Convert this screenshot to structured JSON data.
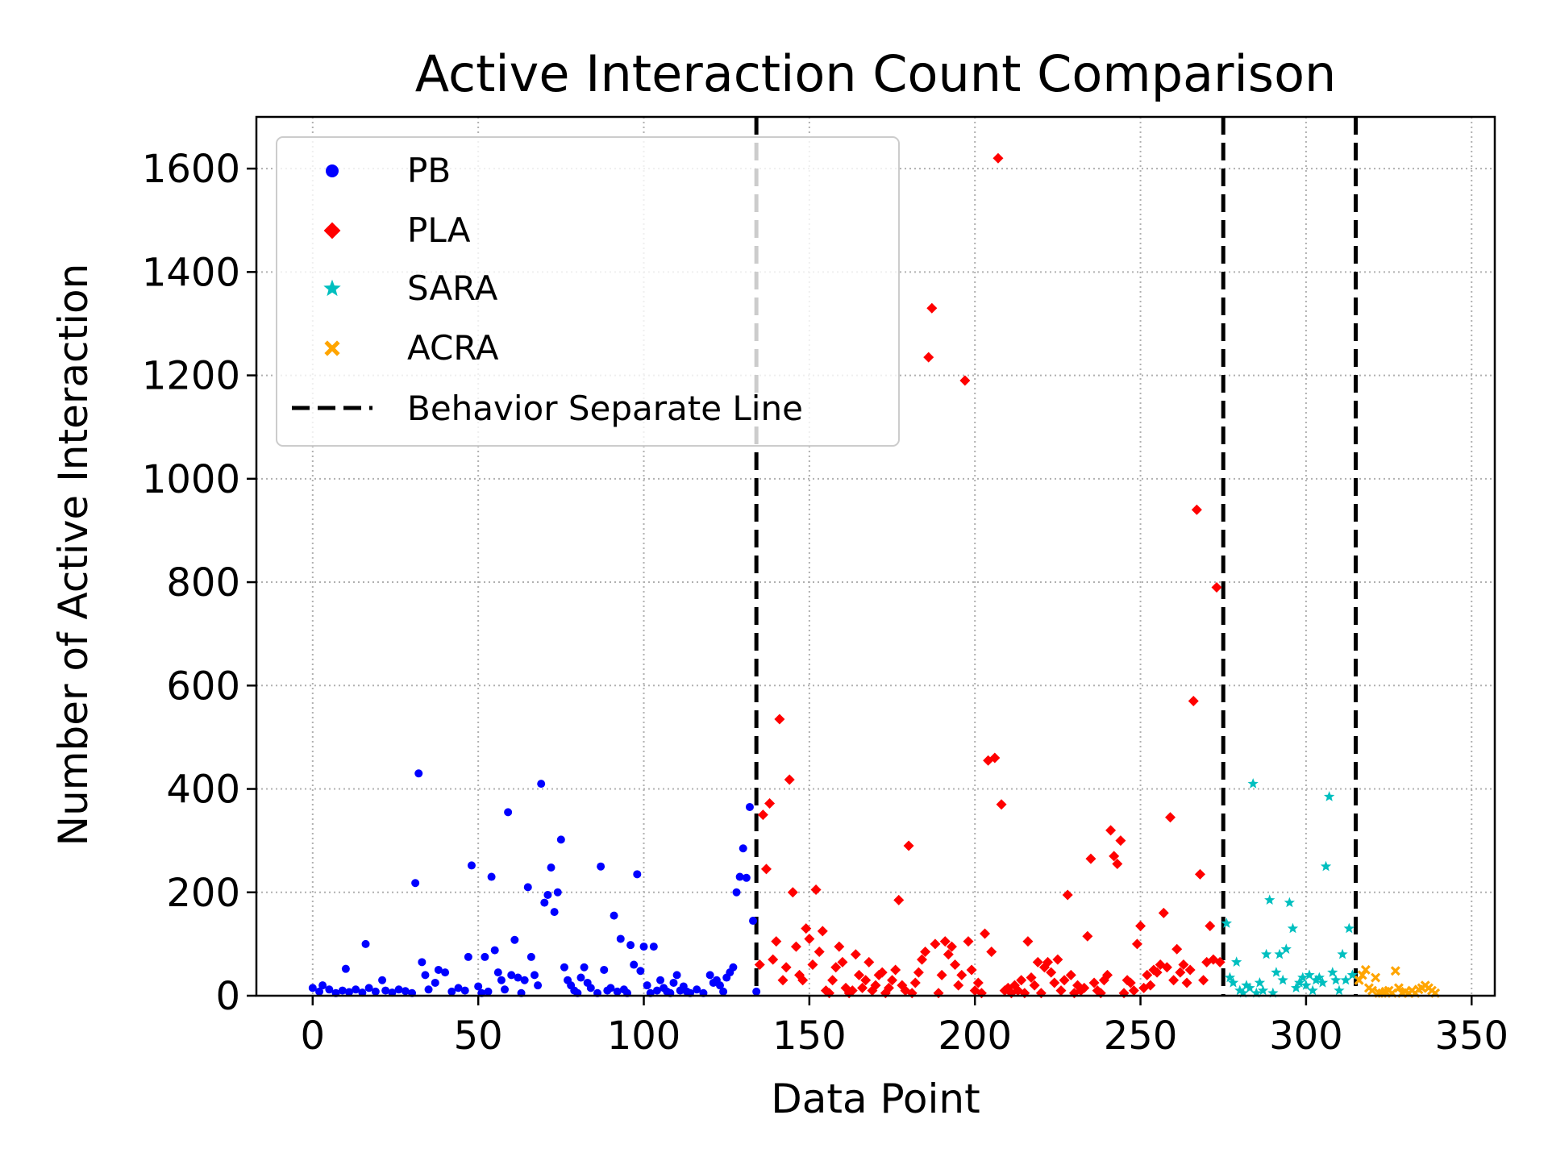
{
  "chart_data": {
    "type": "scatter",
    "title": "Active Interaction Count Comparison",
    "xlabel": "Data Point",
    "ylabel": "Number of Active Interaction",
    "xlim": [
      -17,
      357
    ],
    "ylim": [
      0,
      1700
    ],
    "xticks": [
      0,
      50,
      100,
      150,
      200,
      250,
      300,
      350
    ],
    "yticks": [
      0,
      200,
      400,
      600,
      800,
      1000,
      1200,
      1400,
      1600
    ],
    "grid": true,
    "grid_style": "dotted",
    "legend_position": "upper-left",
    "separators": {
      "name": "Behavior Separate Line",
      "color": "#000000",
      "style": "dashed",
      "x": [
        134,
        275,
        315
      ]
    },
    "series": [
      {
        "name": "PB",
        "marker": "circle",
        "color": "#0000ff",
        "points": [
          [
            0,
            15
          ],
          [
            2,
            8
          ],
          [
            3,
            20
          ],
          [
            5,
            12
          ],
          [
            7,
            5
          ],
          [
            9,
            10
          ],
          [
            10,
            52
          ],
          [
            11,
            7
          ],
          [
            13,
            12
          ],
          [
            15,
            6
          ],
          [
            16,
            100
          ],
          [
            17,
            15
          ],
          [
            19,
            8
          ],
          [
            21,
            30
          ],
          [
            22,
            10
          ],
          [
            24,
            6
          ],
          [
            26,
            12
          ],
          [
            28,
            9
          ],
          [
            30,
            5
          ],
          [
            31,
            218
          ],
          [
            32,
            430
          ],
          [
            33,
            65
          ],
          [
            34,
            40
          ],
          [
            35,
            12
          ],
          [
            37,
            25
          ],
          [
            38,
            50
          ],
          [
            40,
            45
          ],
          [
            42,
            8
          ],
          [
            44,
            15
          ],
          [
            46,
            10
          ],
          [
            47,
            75
          ],
          [
            48,
            252
          ],
          [
            50,
            18
          ],
          [
            51,
            5
          ],
          [
            52,
            75
          ],
          [
            53,
            8
          ],
          [
            54,
            230
          ],
          [
            55,
            88
          ],
          [
            56,
            45
          ],
          [
            57,
            30
          ],
          [
            58,
            12
          ],
          [
            59,
            355
          ],
          [
            60,
            40
          ],
          [
            61,
            108
          ],
          [
            62,
            35
          ],
          [
            63,
            5
          ],
          [
            64,
            30
          ],
          [
            65,
            210
          ],
          [
            66,
            75
          ],
          [
            67,
            40
          ],
          [
            68,
            20
          ],
          [
            69,
            410
          ],
          [
            70,
            180
          ],
          [
            71,
            195
          ],
          [
            72,
            248
          ],
          [
            73,
            162
          ],
          [
            74,
            200
          ],
          [
            75,
            302
          ],
          [
            76,
            55
          ],
          [
            77,
            30
          ],
          [
            78,
            20
          ],
          [
            79,
            10
          ],
          [
            80,
            5
          ],
          [
            81,
            35
          ],
          [
            82,
            55
          ],
          [
            83,
            25
          ],
          [
            84,
            15
          ],
          [
            86,
            5
          ],
          [
            87,
            250
          ],
          [
            88,
            50
          ],
          [
            89,
            10
          ],
          [
            90,
            15
          ],
          [
            91,
            155
          ],
          [
            92,
            8
          ],
          [
            93,
            110
          ],
          [
            94,
            12
          ],
          [
            95,
            5
          ],
          [
            96,
            98
          ],
          [
            97,
            60
          ],
          [
            98,
            235
          ],
          [
            99,
            48
          ],
          [
            100,
            95
          ],
          [
            101,
            20
          ],
          [
            102,
            5
          ],
          [
            103,
            95
          ],
          [
            104,
            10
          ],
          [
            105,
            30
          ],
          [
            106,
            15
          ],
          [
            107,
            8
          ],
          [
            108,
            5
          ],
          [
            109,
            25
          ],
          [
            110,
            40
          ],
          [
            111,
            10
          ],
          [
            112,
            18
          ],
          [
            113,
            8
          ],
          [
            114,
            5
          ],
          [
            116,
            12
          ],
          [
            118,
            5
          ],
          [
            120,
            40
          ],
          [
            121,
            25
          ],
          [
            122,
            30
          ],
          [
            123,
            20
          ],
          [
            124,
            8
          ],
          [
            125,
            35
          ],
          [
            126,
            45
          ],
          [
            127,
            55
          ],
          [
            128,
            200
          ],
          [
            129,
            230
          ],
          [
            130,
            285
          ],
          [
            131,
            228
          ],
          [
            132,
            365
          ],
          [
            133,
            145
          ],
          [
            134,
            8
          ]
        ]
      },
      {
        "name": "PLA",
        "marker": "diamond",
        "color": "#ff0000",
        "points": [
          [
            135,
            60
          ],
          [
            136,
            350
          ],
          [
            137,
            245
          ],
          [
            138,
            372
          ],
          [
            139,
            70
          ],
          [
            140,
            105
          ],
          [
            141,
            535
          ],
          [
            142,
            30
          ],
          [
            143,
            55
          ],
          [
            144,
            418
          ],
          [
            145,
            200
          ],
          [
            146,
            95
          ],
          [
            147,
            40
          ],
          [
            148,
            30
          ],
          [
            149,
            130
          ],
          [
            150,
            110
          ],
          [
            151,
            60
          ],
          [
            152,
            205
          ],
          [
            153,
            85
          ],
          [
            154,
            125
          ],
          [
            155,
            10
          ],
          [
            156,
            5
          ],
          [
            157,
            30
          ],
          [
            158,
            55
          ],
          [
            159,
            95
          ],
          [
            160,
            65
          ],
          [
            161,
            15
          ],
          [
            162,
            5
          ],
          [
            163,
            10
          ],
          [
            164,
            80
          ],
          [
            165,
            40
          ],
          [
            166,
            15
          ],
          [
            167,
            30
          ],
          [
            168,
            65
          ],
          [
            169,
            10
          ],
          [
            170,
            20
          ],
          [
            171,
            40
          ],
          [
            172,
            45
          ],
          [
            173,
            5
          ],
          [
            174,
            15
          ],
          [
            175,
            30
          ],
          [
            176,
            50
          ],
          [
            177,
            185
          ],
          [
            178,
            20
          ],
          [
            179,
            10
          ],
          [
            180,
            290
          ],
          [
            181,
            5
          ],
          [
            182,
            25
          ],
          [
            183,
            45
          ],
          [
            184,
            70
          ],
          [
            185,
            85
          ],
          [
            186,
            1235
          ],
          [
            187,
            1330
          ],
          [
            188,
            100
          ],
          [
            189,
            5
          ],
          [
            190,
            40
          ],
          [
            191,
            105
          ],
          [
            192,
            80
          ],
          [
            193,
            95
          ],
          [
            194,
            60
          ],
          [
            195,
            20
          ],
          [
            196,
            40
          ],
          [
            197,
            1190
          ],
          [
            198,
            105
          ],
          [
            199,
            50
          ],
          [
            200,
            10
          ],
          [
            201,
            25
          ],
          [
            202,
            5
          ],
          [
            203,
            120
          ],
          [
            204,
            455
          ],
          [
            205,
            85
          ],
          [
            206,
            460
          ],
          [
            207,
            1620
          ],
          [
            208,
            370
          ],
          [
            209,
            10
          ],
          [
            210,
            15
          ],
          [
            211,
            5
          ],
          [
            212,
            20
          ],
          [
            213,
            10
          ],
          [
            214,
            30
          ],
          [
            215,
            5
          ],
          [
            216,
            105
          ],
          [
            217,
            35
          ],
          [
            218,
            20
          ],
          [
            219,
            65
          ],
          [
            220,
            5
          ],
          [
            221,
            55
          ],
          [
            222,
            65
          ],
          [
            223,
            45
          ],
          [
            224,
            25
          ],
          [
            225,
            70
          ],
          [
            226,
            10
          ],
          [
            227,
            30
          ],
          [
            228,
            195
          ],
          [
            229,
            40
          ],
          [
            230,
            5
          ],
          [
            231,
            20
          ],
          [
            232,
            10
          ],
          [
            233,
            15
          ],
          [
            234,
            115
          ],
          [
            235,
            265
          ],
          [
            236,
            25
          ],
          [
            237,
            10
          ],
          [
            238,
            5
          ],
          [
            239,
            30
          ],
          [
            240,
            40
          ],
          [
            241,
            320
          ],
          [
            242,
            270
          ],
          [
            243,
            255
          ],
          [
            244,
            300
          ],
          [
            245,
            5
          ],
          [
            246,
            30
          ],
          [
            247,
            25
          ],
          [
            248,
            10
          ],
          [
            249,
            100
          ],
          [
            250,
            135
          ],
          [
            251,
            15
          ],
          [
            252,
            40
          ],
          [
            253,
            20
          ],
          [
            254,
            50
          ],
          [
            255,
            45
          ],
          [
            256,
            60
          ],
          [
            257,
            160
          ],
          [
            258,
            55
          ],
          [
            259,
            345
          ],
          [
            260,
            30
          ],
          [
            261,
            90
          ],
          [
            262,
            45
          ],
          [
            263,
            60
          ],
          [
            264,
            25
          ],
          [
            265,
            50
          ],
          [
            266,
            570
          ],
          [
            267,
            940
          ],
          [
            268,
            235
          ],
          [
            269,
            30
          ],
          [
            270,
            65
          ],
          [
            271,
            135
          ],
          [
            272,
            70
          ],
          [
            273,
            790
          ],
          [
            274,
            65
          ]
        ]
      },
      {
        "name": "SARA",
        "marker": "star",
        "color": "#00bfbf",
        "points": [
          [
            276,
            140
          ],
          [
            277,
            35
          ],
          [
            278,
            25
          ],
          [
            279,
            65
          ],
          [
            280,
            10
          ],
          [
            281,
            5
          ],
          [
            282,
            20
          ],
          [
            283,
            15
          ],
          [
            284,
            410
          ],
          [
            285,
            5
          ],
          [
            286,
            25
          ],
          [
            287,
            10
          ],
          [
            288,
            80
          ],
          [
            289,
            185
          ],
          [
            290,
            5
          ],
          [
            291,
            45
          ],
          [
            292,
            80
          ],
          [
            293,
            30
          ],
          [
            294,
            90
          ],
          [
            295,
            180
          ],
          [
            296,
            130
          ],
          [
            297,
            15
          ],
          [
            298,
            25
          ],
          [
            299,
            35
          ],
          [
            300,
            20
          ],
          [
            301,
            40
          ],
          [
            302,
            10
          ],
          [
            303,
            30
          ],
          [
            304,
            35
          ],
          [
            305,
            25
          ],
          [
            306,
            250
          ],
          [
            307,
            385
          ],
          [
            308,
            45
          ],
          [
            309,
            30
          ],
          [
            310,
            10
          ],
          [
            311,
            80
          ],
          [
            312,
            30
          ],
          [
            313,
            130
          ],
          [
            314,
            40
          ]
        ]
      },
      {
        "name": "ACRA",
        "marker": "cross",
        "color": "#ffa500",
        "points": [
          [
            316,
            30
          ],
          [
            317,
            40
          ],
          [
            318,
            50
          ],
          [
            319,
            15
          ],
          [
            320,
            10
          ],
          [
            321,
            35
          ],
          [
            322,
            5
          ],
          [
            323,
            5
          ],
          [
            324,
            8
          ],
          [
            325,
            10
          ],
          [
            326,
            5
          ],
          [
            327,
            48
          ],
          [
            328,
            15
          ],
          [
            329,
            5
          ],
          [
            330,
            8
          ],
          [
            331,
            5
          ],
          [
            332,
            10
          ],
          [
            333,
            5
          ],
          [
            334,
            12
          ],
          [
            335,
            15
          ],
          [
            336,
            20
          ],
          [
            337,
            15
          ],
          [
            338,
            10
          ],
          [
            339,
            5
          ]
        ]
      }
    ]
  }
}
